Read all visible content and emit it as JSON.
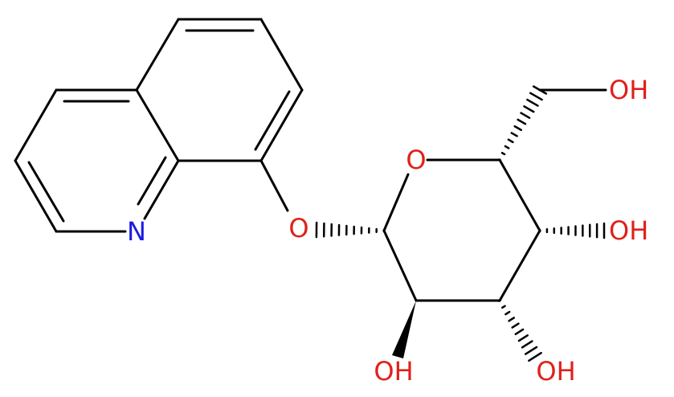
{
  "atoms": {
    "n": "N",
    "o_link": "O",
    "o_ring": "O",
    "oh_6": "OH",
    "oh_4": "OH",
    "oh_3": "OH",
    "oh_2": "OH"
  }
}
